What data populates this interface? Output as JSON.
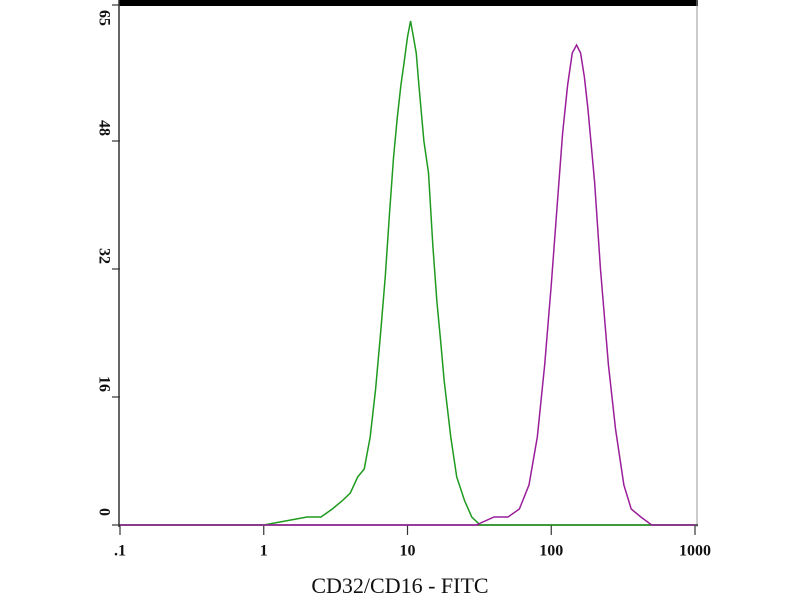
{
  "chart_data": {
    "type": "line",
    "x_label": "CD32/CD16 - FITC",
    "xscale": "log",
    "xlim": [
      0.1,
      1000
    ],
    "ylim": [
      0,
      65
    ],
    "xticks": [
      {
        "value": 0.1,
        "label": ".1"
      },
      1,
      10,
      100,
      1000
    ],
    "yticks": [
      0,
      16,
      32,
      48,
      65
    ],
    "series": [
      {
        "color": "#1f9a1f",
        "x": [
          0.1,
          1,
          2,
          2.5,
          3,
          3.5,
          4,
          4.5,
          5,
          5.5,
          6,
          6.5,
          7,
          7.5,
          8,
          8.5,
          9,
          9.5,
          10,
          10.5,
          11,
          11.5,
          12,
          13,
          14,
          15,
          16,
          17,
          18,
          20,
          22,
          25,
          28,
          32,
          40,
          1000
        ],
        "values": [
          0,
          0,
          1,
          1,
          2,
          3,
          4,
          6,
          7,
          11,
          17,
          24,
          31,
          39,
          46,
          51,
          55,
          58,
          61,
          63,
          61,
          59,
          55,
          48,
          44,
          35,
          28,
          23,
          18,
          11,
          6,
          3,
          1,
          0,
          0,
          0
        ]
      },
      {
        "color": "#9a1e9a",
        "x": [
          0.1,
          30,
          40,
          50,
          60,
          70,
          80,
          90,
          100,
          110,
          120,
          130,
          140,
          150,
          160,
          170,
          180,
          200,
          220,
          250,
          280,
          320,
          360,
          420,
          500,
          1000
        ],
        "values": [
          0,
          0,
          1,
          1,
          2,
          5,
          11,
          20,
          30,
          40,
          49,
          55,
          59,
          60,
          59,
          56,
          52,
          43,
          32,
          20,
          12,
          5,
          2,
          1,
          0,
          0
        ]
      }
    ]
  }
}
